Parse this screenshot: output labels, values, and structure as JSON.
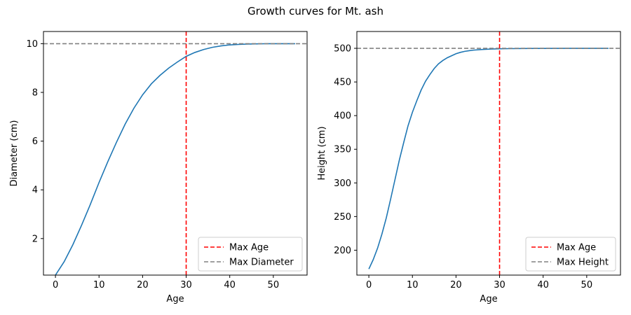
{
  "figure_title": "Growth curves for Mt. ash",
  "colors": {
    "curve": "#1f77b4",
    "max_age": "#ff0000",
    "max_line": "#808080"
  },
  "chart_data": [
    {
      "type": "line",
      "xlabel": "Age",
      "ylabel": "Diameter (cm)",
      "xlim": [
        -2.75,
        57.75
      ],
      "ylim": [
        0.5,
        10.5
      ],
      "xticks": [
        0,
        10,
        20,
        30,
        40,
        50
      ],
      "yticks": [
        2,
        4,
        6,
        8,
        10
      ],
      "legend_position": "lower-right",
      "series": [
        {
          "role": "curve",
          "x": [
            0,
            2,
            4,
            6,
            8,
            10,
            12,
            14,
            16,
            18,
            20,
            22,
            24,
            26,
            28,
            30,
            32,
            34,
            36,
            38,
            40,
            42,
            44,
            46,
            48,
            50,
            52,
            55
          ],
          "y": [
            0.5,
            1.05,
            1.75,
            2.55,
            3.4,
            4.3,
            5.15,
            5.95,
            6.7,
            7.35,
            7.9,
            8.35,
            8.7,
            9.0,
            9.25,
            9.48,
            9.64,
            9.76,
            9.85,
            9.91,
            9.95,
            9.97,
            9.985,
            9.993,
            9.997,
            9.999,
            10.0,
            10.0
          ]
        }
      ],
      "vlines": [
        {
          "name": "Max Age",
          "x": 30,
          "style": "dashed",
          "color": "#ff0000"
        }
      ],
      "hlines": [
        {
          "name": "Max Diameter",
          "y": 10,
          "style": "dashed",
          "color": "#808080"
        }
      ]
    },
    {
      "type": "line",
      "xlabel": "Age",
      "ylabel": "Height (cm)",
      "xlim": [
        -2.75,
        57.75
      ],
      "ylim": [
        163,
        525
      ],
      "xticks": [
        0,
        10,
        20,
        30,
        40,
        50
      ],
      "yticks": [
        200,
        250,
        300,
        350,
        400,
        450,
        500
      ],
      "legend_position": "lower-right",
      "series": [
        {
          "role": "curve",
          "x": [
            0,
            1,
            2,
            3,
            4,
            5,
            6,
            7,
            8,
            9,
            10,
            11,
            12,
            13,
            14,
            15,
            16,
            17,
            18,
            19,
            20,
            21,
            22,
            23,
            24,
            26,
            28,
            30,
            32,
            35,
            40,
            45,
            50,
            55
          ],
          "y": [
            172,
            186,
            203,
            224,
            248,
            276,
            305,
            334,
            360,
            385,
            405,
            422,
            438,
            451,
            461,
            470,
            477,
            482,
            486,
            489,
            492,
            494,
            495.5,
            496.5,
            497.3,
            498.3,
            498.9,
            499.3,
            499.5,
            499.7,
            499.85,
            499.93,
            499.97,
            500
          ]
        }
      ],
      "vlines": [
        {
          "name": "Max Age",
          "x": 30,
          "style": "dashed",
          "color": "#ff0000"
        }
      ],
      "hlines": [
        {
          "name": "Max Height",
          "y": 500,
          "style": "dashed",
          "color": "#808080"
        }
      ]
    }
  ]
}
